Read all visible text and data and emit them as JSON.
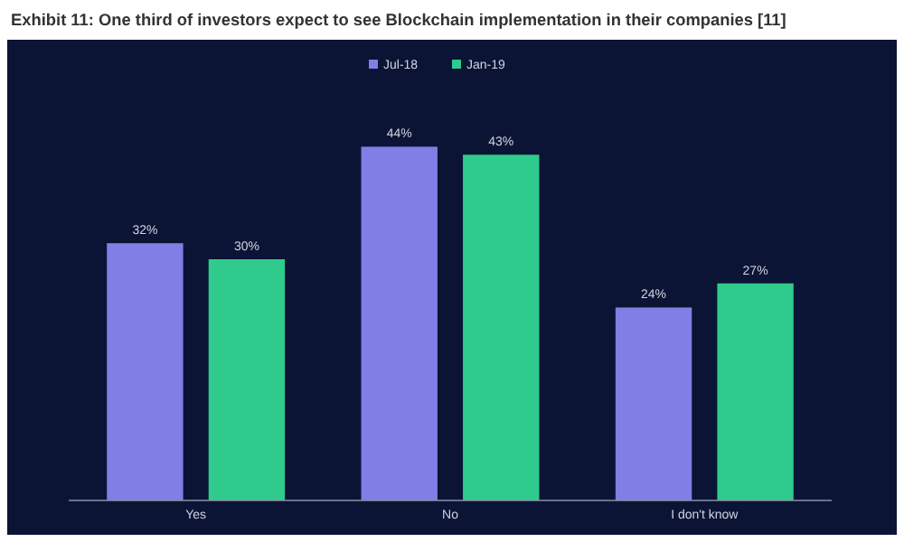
{
  "chart_data": {
    "type": "bar",
    "title": "Exhibit 11: One third of investors expect to see Blockchain implementation in their companies [11]",
    "categories": [
      "Yes",
      "No",
      "I don't know"
    ],
    "series": [
      {
        "name": "Jul-18",
        "color": "#7f7fe6",
        "values": [
          32,
          44,
          24
        ],
        "value_labels": [
          "32%",
          "44%",
          "24%"
        ]
      },
      {
        "name": "Jan-19",
        "color": "#2fcb8c",
        "values": [
          30,
          43,
          27
        ],
        "value_labels": [
          "30%",
          "43%",
          "27%"
        ]
      }
    ],
    "legend": "top"
  }
}
